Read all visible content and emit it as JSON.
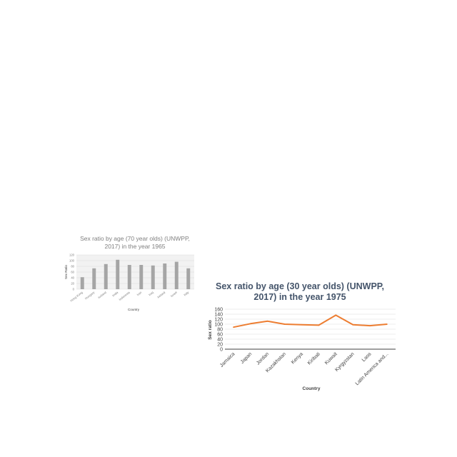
{
  "chart_data": [
    {
      "type": "bar",
      "title_line1": "Sex ratio by age (70 year olds) (UNWPP,",
      "title_line2": "2017) in the year 1965",
      "xlabel": "Country",
      "ylabel": "Sex Ratio",
      "categories": [
        "Hong Kong",
        "Hungary",
        "Iceland",
        "India",
        "Indonesia",
        "Iran",
        "Iraq",
        "Ireland",
        "Israel",
        "Italy"
      ],
      "values": [
        42,
        73,
        88,
        103,
        85,
        85,
        83,
        90,
        96,
        73
      ],
      "ylim": [
        0,
        120
      ],
      "yticks": [
        "0",
        "20",
        "40",
        "60",
        "80",
        "100",
        "120"
      ],
      "grid": true,
      "colors": {
        "bar": "#a5a5a5",
        "plot_bg": "#f2f2f2",
        "grid": "#d9d9d9"
      }
    },
    {
      "type": "line",
      "title_line1": "Sex ratio by age (30 year olds) (UNWPP,",
      "title_line2": "2017) in the year 1975",
      "xlabel": "Country",
      "ylabel": "Sex ratio",
      "categories": [
        "Jamaica",
        "Japan",
        "Jordan",
        "Kazakhstan",
        "Kenya",
        "Kiribati",
        "Kuwait",
        "Kyrgyzstan",
        "Laos",
        "Latin America and..."
      ],
      "values": [
        88,
        102,
        112,
        100,
        98,
        96,
        136,
        98,
        94,
        100
      ],
      "ylim": [
        0,
        160
      ],
      "yticks": [
        "0",
        "20",
        "40",
        "60",
        "80",
        "100",
        "120",
        "140",
        "160"
      ],
      "grid": true,
      "colors": {
        "line": "#ed7d31",
        "grid": "#d9d9d9",
        "axis": "#404040"
      }
    }
  ]
}
